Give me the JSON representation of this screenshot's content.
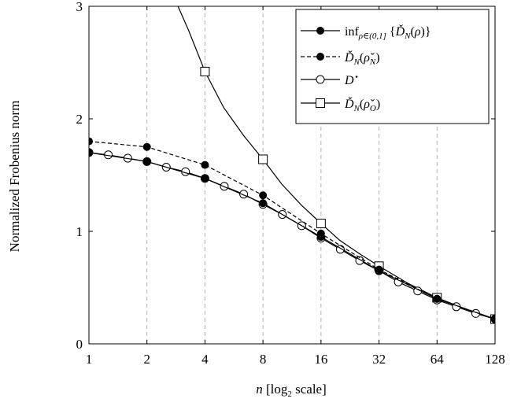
{
  "chart_data": {
    "type": "line",
    "xlabel": "n [log2 scale]",
    "ylabel": "Normalized Frobenius norm",
    "x_scale": "log2",
    "xlim": [
      1,
      128
    ],
    "ylim": [
      0,
      3
    ],
    "x_ticks": [
      1,
      2,
      4,
      8,
      16,
      32,
      64,
      128
    ],
    "x_tick_labels": [
      "1",
      "2",
      "4",
      "8",
      "16",
      "32",
      "64",
      "128"
    ],
    "y_ticks": [
      0,
      1,
      2,
      3
    ],
    "y_tick_labels": [
      "0",
      "1",
      "2",
      "3"
    ],
    "grid": "vertical dashed at x ticks",
    "legend_position": "top-right",
    "series": [
      {
        "name": "inf_{ρ∈(0,1]} {Ď_N(ρ)}",
        "style": "solid",
        "marker": "filled-circle",
        "x": [
          1,
          2,
          4,
          8,
          16,
          32,
          64,
          128
        ],
        "y": [
          1.7,
          1.62,
          1.47,
          1.25,
          0.95,
          0.65,
          0.4,
          0.22
        ]
      },
      {
        "name": "Ď_N(ρ̌_N)",
        "style": "dashed",
        "marker": "filled-circle",
        "x": [
          1,
          2,
          4,
          8,
          16,
          32,
          64,
          128
        ],
        "y": [
          1.8,
          1.75,
          1.59,
          1.32,
          0.98,
          0.66,
          0.4,
          0.22
        ]
      },
      {
        "name": "D*",
        "style": "solid",
        "marker": "open-circle",
        "x": [
          1,
          1.26,
          1.59,
          2,
          2.52,
          3.17,
          4,
          5.04,
          6.35,
          8,
          10.08,
          12.7,
          16,
          20.16,
          25.4,
          32,
          40.3,
          50.8,
          64,
          80.6,
          101.6,
          128
        ],
        "y": [
          1.7,
          1.68,
          1.65,
          1.62,
          1.57,
          1.53,
          1.47,
          1.4,
          1.33,
          1.24,
          1.15,
          1.05,
          0.94,
          0.84,
          0.74,
          0.65,
          0.55,
          0.47,
          0.39,
          0.33,
          0.27,
          0.22
        ]
      },
      {
        "name": "Ď_N(ρ̌_O)",
        "style": "solid",
        "marker": "open-square",
        "x": [
          4,
          8,
          16,
          32,
          64,
          128
        ],
        "y": [
          2.42,
          1.64,
          1.07,
          0.69,
          0.41,
          0.22
        ],
        "curve_x": [
          2.9,
          3.3,
          4,
          5,
          6.35,
          8,
          10,
          12.7,
          16,
          20,
          25.4,
          32,
          45,
          64,
          90,
          128
        ],
        "curve_y": [
          3.0,
          2.78,
          2.42,
          2.1,
          1.85,
          1.64,
          1.42,
          1.23,
          1.07,
          0.92,
          0.8,
          0.69,
          0.54,
          0.41,
          0.31,
          0.22
        ]
      }
    ]
  }
}
